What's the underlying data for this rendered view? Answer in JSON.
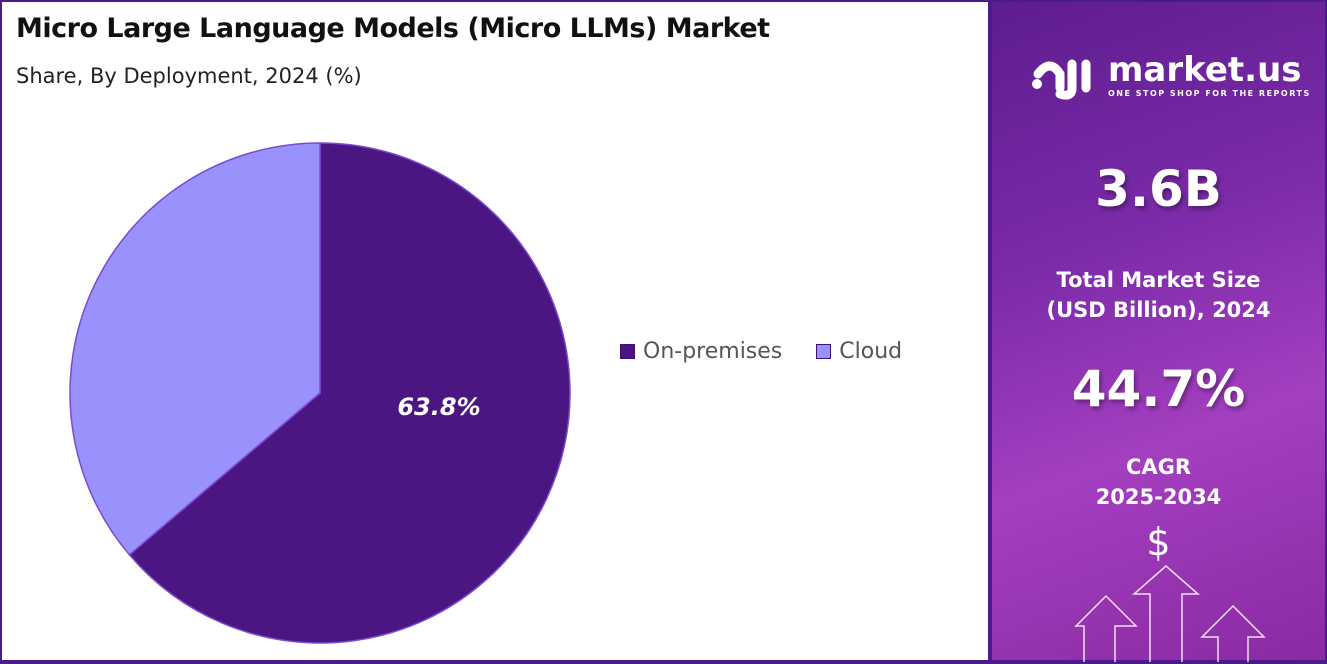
{
  "title": "Micro Large Language Models (Micro LLMs) Market",
  "subtitle": "Share, By Deployment, 2024 (%)",
  "chart_data": {
    "type": "pie",
    "categories": [
      "On-premises",
      "Cloud"
    ],
    "values": [
      63.8,
      36.2
    ],
    "colors": [
      "#4b1682",
      "#9a92fc"
    ],
    "data_labels": [
      "63.8%",
      ""
    ],
    "legend": "right",
    "start": "top, clockwise"
  },
  "legend": {
    "items": [
      "On-premises",
      "Cloud"
    ]
  },
  "side": {
    "brand": "market.us",
    "tagline": "ONE STOP SHOP FOR THE REPORTS",
    "market_size": "3.6B",
    "market_size_label_1": "Total Market Size",
    "market_size_label_2": "(USD Billion), 2024",
    "cagr": "44.7%",
    "cagr_label_1": "CAGR",
    "cagr_label_2": "2025-2034",
    "dollar": "$"
  }
}
